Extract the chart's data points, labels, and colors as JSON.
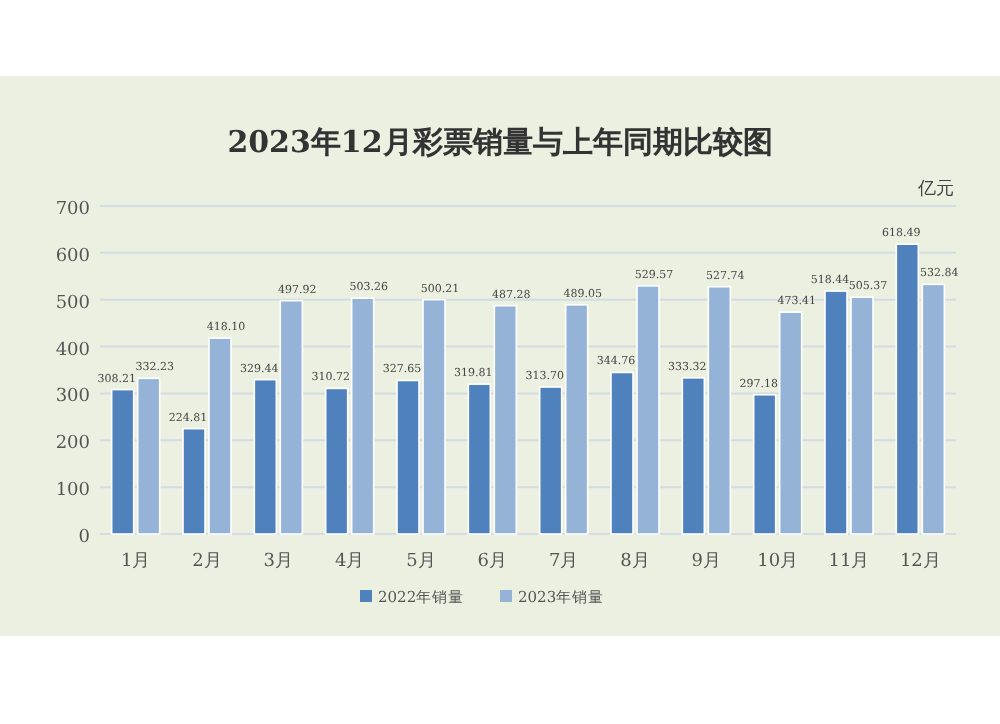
{
  "chart_data": {
    "type": "bar",
    "title": "2023年12月彩票销量与上年同期比较图",
    "annotations": [
      "亿元"
    ],
    "categories": [
      "1月",
      "2月",
      "3月",
      "4月",
      "5月",
      "6月",
      "7月",
      "8月",
      "9月",
      "10月",
      "11月",
      "12月"
    ],
    "series": [
      {
        "name": "2022年销量",
        "color": "#4f81bd",
        "values": [
          308.21,
          224.81,
          329.44,
          310.72,
          327.65,
          319.81,
          313.7,
          344.76,
          333.32,
          297.18,
          518.44,
          618.49
        ],
        "value_labels": [
          "308.21",
          "224.81",
          "329.44",
          "310.72",
          "327.65",
          "319.81",
          "313.70",
          "344.76",
          "333.32",
          "297.18",
          "518.44",
          "618.49"
        ]
      },
      {
        "name": "2023年销量",
        "color": "#95b3d7",
        "values": [
          332.23,
          418.1,
          497.92,
          503.26,
          500.21,
          487.28,
          489.05,
          529.57,
          527.74,
          473.41,
          505.37,
          532.84
        ],
        "value_labels": [
          "332.23",
          "418.10",
          "497.92",
          "503.26",
          "500.21",
          "487.28",
          "489.05",
          "529.57",
          "527.74",
          "473.41",
          "505.37",
          "532.84"
        ]
      }
    ],
    "ylim": [
      0,
      700
    ],
    "yticks": [
      0,
      100,
      200,
      300,
      400,
      500,
      600,
      700
    ],
    "grid": "y",
    "legend": "bottom"
  }
}
